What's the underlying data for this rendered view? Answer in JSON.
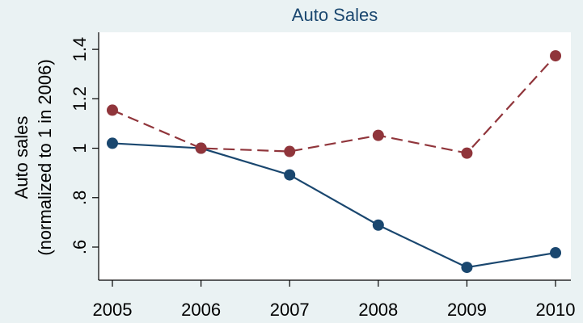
{
  "chart_data": {
    "type": "line",
    "title": "Auto Sales",
    "y_label": [
      "Auto sales",
      "(normalized to 1 in 2006)"
    ],
    "x": [
      2005,
      2006,
      2007,
      2008,
      2009,
      2010
    ],
    "series": [
      {
        "color": "#1a476f",
        "dash": "solid",
        "values": [
          1.02,
          1.0,
          0.892,
          0.689,
          0.518,
          0.577
        ]
      },
      {
        "color": "#90353b",
        "dash": "dashed",
        "values": [
          1.154,
          1.0,
          0.987,
          1.052,
          0.98,
          1.374
        ]
      }
    ],
    "xlim": [
      2004.845,
      2010.173
    ],
    "xticks": [
      2005,
      2006,
      2007,
      2008,
      2009,
      2010
    ],
    "ylim": [
      0.466,
      1.469
    ],
    "yticks": [
      {
        "value": 0.6,
        "label": ".6"
      },
      {
        "value": 0.8,
        "label": ".8"
      },
      1,
      1.2,
      1.4
    ],
    "grid": false
  }
}
